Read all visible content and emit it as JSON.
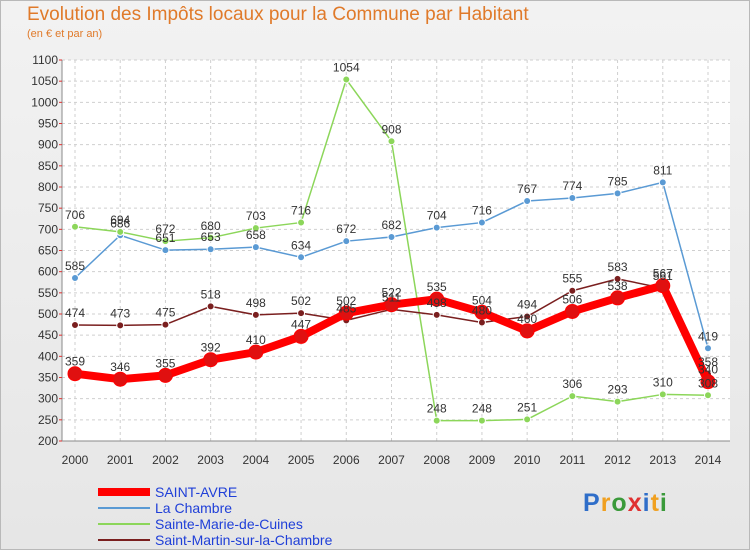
{
  "colors": {
    "series": [
      "#ff0000",
      "#5a9ad4",
      "#8cd65a",
      "#7a1f1f"
    ],
    "title": "#e07a2a",
    "legend_text": "#1f3fd8",
    "logo": [
      "#2f6ec9",
      "#f0a020",
      "#3a9a3a",
      "#e03030"
    ]
  },
  "header": {
    "title": "Evolution des Impôts locaux pour la Commune par Habitant",
    "subtitle": "(en € et par an)"
  },
  "logo": {
    "letters": [
      "P",
      "r",
      "o",
      "x",
      "i",
      "t",
      "i"
    ]
  },
  "chart_data": {
    "type": "line",
    "title": "Evolution des Impôts locaux pour la Commune par Habitant",
    "subtitle": "(en € et par an)",
    "x": [
      "2000",
      "2001",
      "2002",
      "2003",
      "2004",
      "2005",
      "2006",
      "2007",
      "2008",
      "2009",
      "2010",
      "2011",
      "2012",
      "2013",
      "2014"
    ],
    "ylim": [
      200,
      1100
    ],
    "yticks": [
      200,
      250,
      300,
      350,
      400,
      450,
      500,
      550,
      600,
      650,
      700,
      750,
      800,
      850,
      900,
      950,
      1000,
      1050,
      1100
    ],
    "grid": true,
    "legend_position": "bottom-left",
    "series": [
      {
        "name": "SAINT-AVRE",
        "values": [
          359,
          346,
          355,
          392,
          410,
          447,
          502,
          522,
          535,
          504,
          460,
          506,
          538,
          567,
          340
        ]
      },
      {
        "name": "La Chambre",
        "values": [
          585,
          686,
          651,
          653,
          658,
          634,
          672,
          682,
          704,
          716,
          767,
          774,
          785,
          811,
          419
        ]
      },
      {
        "name": "Sainte-Marie-de-Cuines",
        "values": [
          706,
          694,
          672,
          680,
          703,
          716,
          1054,
          908,
          248,
          248,
          251,
          306,
          293,
          310,
          308
        ]
      },
      {
        "name": "Saint-Martin-sur-la-Chambre",
        "values": [
          474,
          473,
          475,
          518,
          498,
          502,
          485,
          511,
          498,
          480,
          494,
          555,
          583,
          561,
          358
        ]
      }
    ]
  }
}
